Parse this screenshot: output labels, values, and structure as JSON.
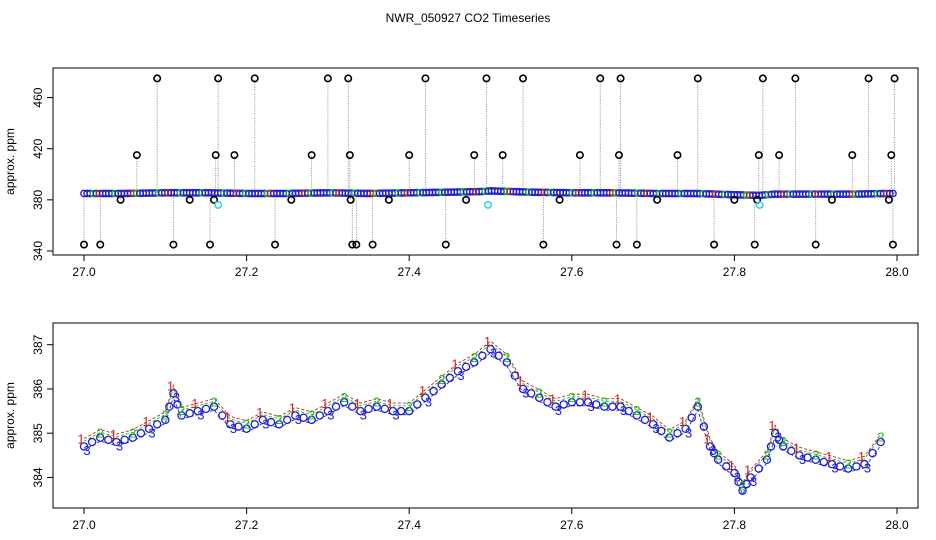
{
  "figure": {
    "title": "NWR_050927  CO2 Timeseries"
  },
  "colors": {
    "black": "#000000",
    "blue": "#1f1fd0",
    "green": "#1fbf1f",
    "red": "#d01f1f",
    "cyan": "#33d6e8",
    "gray": "#8a8a8a"
  },
  "chart_data": [
    {
      "type": "scatter",
      "title": "",
      "xlabel": "",
      "ylabel": "approx. ppm",
      "xlim": [
        27.0,
        28.0
      ],
      "ylim": [
        340,
        480
      ],
      "x_ticks": [
        27.0,
        27.2,
        27.4,
        27.6,
        27.8,
        28.0
      ],
      "x_tick_labels": [
        "27.0",
        "27.2",
        "27.4",
        "27.6",
        "27.8",
        "28.0"
      ],
      "y_ticks": [
        340,
        380,
        420,
        460
      ],
      "y_tick_labels": [
        "340",
        "380",
        "420",
        "460"
      ],
      "grid": false,
      "baseline_series": {
        "x": [
          27.0,
          27.05,
          27.1,
          27.15,
          27.2,
          27.25,
          27.3,
          27.35,
          27.4,
          27.45,
          27.49,
          27.5,
          27.55,
          27.6,
          27.65,
          27.7,
          27.75,
          27.8,
          27.83,
          27.85,
          27.9,
          27.95,
          27.99
        ],
        "y": [
          385,
          385,
          385.5,
          385.5,
          385,
          385,
          385.5,
          385,
          385.5,
          386,
          386.5,
          387,
          386,
          385.5,
          385.5,
          385,
          385,
          384,
          383.5,
          384.5,
          384.5,
          384.5,
          385
        ]
      },
      "outliers": {
        "x": [
          27.0,
          27.02,
          27.045,
          27.065,
          27.09,
          27.11,
          27.13,
          27.155,
          27.16,
          27.162,
          27.165,
          27.185,
          27.21,
          27.235,
          27.255,
          27.28,
          27.3,
          27.325,
          27.327,
          27.328,
          27.33,
          27.335,
          27.355,
          27.375,
          27.4,
          27.42,
          27.445,
          27.47,
          27.48,
          27.495,
          27.515,
          27.54,
          27.565,
          27.585,
          27.61,
          27.635,
          27.655,
          27.658,
          27.66,
          27.68,
          27.705,
          27.73,
          27.755,
          27.775,
          27.8,
          27.825,
          27.828,
          27.83,
          27.835,
          27.855,
          27.875,
          27.9,
          27.92,
          27.945,
          27.965,
          27.99,
          27.993,
          27.995,
          27.997
        ],
        "y": [
          345,
          345,
          380,
          415,
          475,
          345,
          380,
          345,
          380,
          415,
          475,
          415,
          475,
          345,
          380,
          415,
          475,
          475,
          415,
          380,
          345,
          345,
          345,
          380,
          415,
          475,
          345,
          380,
          415,
          475,
          415,
          475,
          345,
          380,
          415,
          475,
          345,
          415,
          475,
          345,
          380,
          415,
          475,
          345,
          380,
          345,
          380,
          415,
          475,
          415,
          475,
          345,
          380,
          415,
          475,
          380,
          415,
          345,
          475
        ]
      },
      "cyan_points": {
        "x": [
          27.165,
          27.497,
          27.831
        ],
        "y": [
          376,
          376,
          376
        ]
      }
    },
    {
      "type": "scatter",
      "title": "",
      "xlabel": "",
      "ylabel": "approx. ppm",
      "xlim": [
        27.0,
        28.0
      ],
      "ylim": [
        383.4,
        387.4
      ],
      "x_ticks": [
        27.0,
        27.2,
        27.4,
        27.6,
        27.8,
        28.0
      ],
      "x_tick_labels": [
        "27.0",
        "27.2",
        "27.4",
        "27.6",
        "27.8",
        "28.0"
      ],
      "y_ticks": [
        384,
        385,
        386,
        387
      ],
      "y_tick_labels": [
        "384",
        "385",
        "386",
        "387"
      ],
      "grid": false,
      "series": [
        {
          "marker": "1",
          "color": "red"
        },
        {
          "marker": "2",
          "color": "green"
        },
        {
          "marker": "3",
          "color": "blue"
        }
      ],
      "x": [
        27.0,
        27.02,
        27.04,
        27.06,
        27.08,
        27.1,
        27.11,
        27.12,
        27.14,
        27.16,
        27.18,
        27.2,
        27.22,
        27.24,
        27.26,
        27.28,
        27.3,
        27.32,
        27.34,
        27.36,
        27.38,
        27.4,
        27.42,
        27.44,
        27.46,
        27.48,
        27.5,
        27.52,
        27.54,
        27.56,
        27.58,
        27.6,
        27.62,
        27.64,
        27.66,
        27.68,
        27.7,
        27.72,
        27.74,
        27.755,
        27.77,
        27.78,
        27.8,
        27.81,
        27.82,
        27.84,
        27.85,
        27.86,
        27.88,
        27.9,
        27.92,
        27.94,
        27.96,
        27.98
      ],
      "y": [
        384.7,
        384.9,
        384.8,
        384.9,
        385.1,
        385.3,
        385.9,
        385.4,
        385.5,
        385.6,
        385.2,
        385.1,
        385.3,
        385.2,
        385.4,
        385.3,
        385.5,
        385.7,
        385.5,
        385.6,
        385.5,
        385.5,
        385.8,
        386.1,
        386.4,
        386.6,
        386.9,
        386.6,
        386.0,
        385.8,
        385.6,
        385.7,
        385.7,
        385.6,
        385.6,
        385.4,
        385.2,
        384.9,
        385.1,
        385.6,
        384.7,
        384.4,
        384.1,
        383.7,
        384.0,
        384.4,
        385.0,
        384.7,
        384.5,
        384.4,
        384.3,
        384.2,
        384.3,
        384.8
      ]
    }
  ]
}
